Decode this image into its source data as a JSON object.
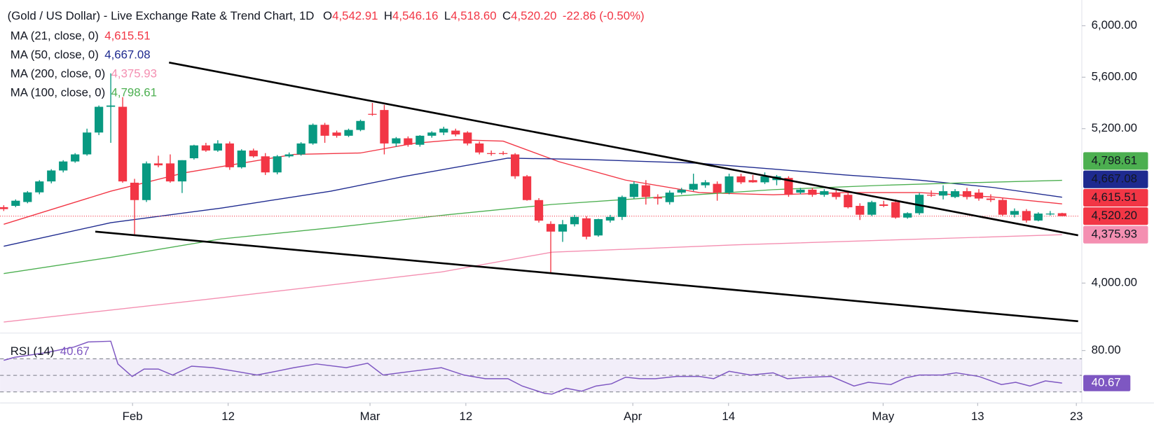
{
  "chart_data": {
    "type": "candlestick",
    "header": {
      "title": "(Gold / US Dollar) - Live Exchange Rate & Trend Chart, 1D",
      "fields": [
        {
          "key": "O",
          "value": "4,542.91"
        },
        {
          "key": "H",
          "value": "4,546.16"
        },
        {
          "key": "L",
          "value": "4,518.60"
        },
        {
          "key": "C",
          "value": "4,520.20"
        }
      ],
      "change": "-22.86 (-0.50%)"
    },
    "up_color": "#089981",
    "down_color": "#f23645",
    "xlim": [
      -0.3094,
      90.35
    ],
    "xticks": [
      {
        "value": 10.83,
        "label": "Feb"
      },
      {
        "value": 18.87,
        "label": "12"
      },
      {
        "value": 30.8,
        "label": "Mar"
      },
      {
        "value": 38.86,
        "label": "12"
      },
      {
        "value": 52.9,
        "label": "Apr"
      },
      {
        "value": 60.95,
        "label": "14"
      },
      {
        "value": 73.95,
        "label": "May"
      },
      {
        "value": 81.9,
        "label": "13"
      },
      {
        "value": 90.2,
        "label": "23"
      }
    ],
    "ylim": [
      3611,
      6200
    ],
    "yticks": [
      {
        "value": 6000,
        "label": "6,000.00"
      },
      {
        "value": 5600,
        "label": "5,600.00"
      },
      {
        "value": 5200,
        "label": "5,200.00"
      },
      {
        "value": 4000,
        "label": "4,000.00"
      }
    ],
    "ohlc": [
      [
        4590,
        4605,
        4560,
        4575
      ],
      [
        4600,
        4650,
        4590,
        4640
      ],
      [
        4630,
        4715,
        4620,
        4705
      ],
      [
        4705,
        4800,
        4690,
        4790
      ],
      [
        4790,
        4885,
        4775,
        4875
      ],
      [
        4875,
        4955,
        4860,
        4945
      ],
      [
        4945,
        5010,
        4935,
        5000
      ],
      [
        5000,
        5200,
        4990,
        5170
      ],
      [
        5170,
        5380,
        5150,
        5370
      ],
      [
        5370,
        5630,
        5090,
        5380
      ],
      [
        5370,
        5445,
        4780,
        4790
      ],
      [
        4780,
        4810,
        4380,
        4645
      ],
      [
        4645,
        4945,
        4630,
        4930
      ],
      [
        4930,
        4990,
        4900,
        4915
      ],
      [
        4930,
        5000,
        4780,
        4790
      ],
      [
        4790,
        4955,
        4700,
        4955
      ],
      [
        4970,
        5075,
        4960,
        5070
      ],
      [
        5070,
        5090,
        5020,
        5030
      ],
      [
        5030,
        5110,
        5020,
        5085
      ],
      [
        5085,
        5100,
        4880,
        4900
      ],
      [
        4900,
        5040,
        4890,
        5030
      ],
      [
        5030,
        5045,
        4975,
        4985
      ],
      [
        4985,
        5010,
        4840,
        4860
      ],
      [
        4860,
        4995,
        4845,
        4985
      ],
      [
        4985,
        5015,
        4975,
        5000
      ],
      [
        5000,
        5095,
        4990,
        5085
      ],
      [
        5085,
        5240,
        5075,
        5230
      ],
      [
        5230,
        5245,
        5090,
        5145
      ],
      [
        5170,
        5185,
        5130,
        5145
      ],
      [
        5145,
        5200,
        5135,
        5190
      ],
      [
        5190,
        5270,
        5180,
        5260
      ],
      [
        5315,
        5400,
        5300,
        5310
      ],
      [
        5345,
        5385,
        5000,
        5085
      ],
      [
        5085,
        5135,
        5060,
        5125
      ],
      [
        5125,
        5140,
        5060,
        5075
      ],
      [
        5075,
        5150,
        5060,
        5145
      ],
      [
        5145,
        5180,
        5130,
        5170
      ],
      [
        5170,
        5215,
        5150,
        5200
      ],
      [
        5185,
        5200,
        5140,
        5155
      ],
      [
        5170,
        5180,
        5070,
        5085
      ],
      [
        5085,
        5100,
        5000,
        5015
      ],
      [
        5010,
        5030,
        4990,
        5005
      ],
      [
        5010,
        5025,
        4995,
        5005
      ],
      [
        5000,
        5010,
        4810,
        4830
      ],
      [
        4830,
        4840,
        4640,
        4645
      ],
      [
        4645,
        4660,
        4470,
        4485
      ],
      [
        4460,
        4480,
        4080,
        4400
      ],
      [
        4400,
        4490,
        4320,
        4457
      ],
      [
        4457,
        4530,
        4440,
        4514
      ],
      [
        4503,
        4520,
        4340,
        4360
      ],
      [
        4370,
        4500,
        4360,
        4497
      ],
      [
        4486,
        4530,
        4470,
        4514
      ],
      [
        4514,
        4680,
        4490,
        4669
      ],
      [
        4669,
        4790,
        4655,
        4771
      ],
      [
        4760,
        4800,
        4610,
        4669
      ],
      [
        4669,
        4690,
        4610,
        4657
      ],
      [
        4629,
        4720,
        4610,
        4703
      ],
      [
        4703,
        4740,
        4690,
        4726
      ],
      [
        4726,
        4850,
        4715,
        4771
      ],
      [
        4760,
        4800,
        4740,
        4783
      ],
      [
        4771,
        4790,
        4640,
        4703
      ],
      [
        4703,
        4850,
        4690,
        4829
      ],
      [
        4829,
        4850,
        4770,
        4783
      ],
      [
        4800,
        4840,
        4780,
        4783
      ],
      [
        4783,
        4860,
        4770,
        4829
      ],
      [
        4800,
        4840,
        4760,
        4829
      ],
      [
        4817,
        4830,
        4670,
        4686
      ],
      [
        4703,
        4740,
        4690,
        4726
      ],
      [
        4726,
        4740,
        4670,
        4686
      ],
      [
        4686,
        4730,
        4670,
        4714
      ],
      [
        4703,
        4720,
        4650,
        4669
      ],
      [
        4686,
        4700,
        4580,
        4589
      ],
      [
        4600,
        4620,
        4490,
        4531
      ],
      [
        4531,
        4640,
        4520,
        4629
      ],
      [
        4611,
        4640,
        4590,
        4600
      ],
      [
        4629,
        4650,
        4500,
        4509
      ],
      [
        4509,
        4550,
        4500,
        4543
      ],
      [
        4543,
        4700,
        4530,
        4686
      ],
      [
        4686,
        4720,
        4670,
        4680
      ],
      [
        4680,
        4760,
        4650,
        4714
      ],
      [
        4669,
        4730,
        4660,
        4714
      ],
      [
        4714,
        4740,
        4650,
        4669
      ],
      [
        4703,
        4730,
        4640,
        4657
      ],
      [
        4657,
        4690,
        4630,
        4646
      ],
      [
        4646,
        4660,
        4520,
        4531
      ],
      [
        4531,
        4580,
        4510,
        4560
      ],
      [
        4560,
        4575,
        4470,
        4486
      ],
      [
        4486,
        4550,
        4480,
        4540
      ],
      [
        4540,
        4560,
        4525,
        4540
      ],
      [
        4542.91,
        4546.16,
        4518.6,
        4520.2
      ]
    ],
    "last_price": {
      "value": 4520.2,
      "label": "4,520.20",
      "color": "#f23645"
    },
    "moving_averages": [
      {
        "name": "MA (21, close, 0)",
        "color": "#f23645",
        "last": {
          "value": 4615.51,
          "label": "4,615.51"
        },
        "x": [
          0,
          9,
          15.2,
          24.4,
          30,
          34.5,
          38,
          42,
          46.7,
          52.3,
          58.5,
          64.7,
          70.8,
          77,
          83.2,
          89
        ],
        "values": [
          4457,
          4714,
          4857,
          5000,
          5011,
          5086,
          5114,
          5103,
          4943,
          4800,
          4703,
          4686,
          4703,
          4703,
          4669,
          4615.51
        ]
      },
      {
        "name": "MA (50, close, 0)",
        "color": "#1e2a8f",
        "last": {
          "value": 4667.08,
          "label": "4,667.08"
        },
        "x": [
          0,
          9,
          18.3,
          27.5,
          33.7,
          42.4,
          49.2,
          58.5,
          64.7,
          70.8,
          77,
          83.2,
          89
        ],
        "values": [
          4286,
          4469,
          4583,
          4714,
          4829,
          4971,
          4960,
          4931,
          4886,
          4840,
          4800,
          4743,
          4667.08
        ]
      },
      {
        "name": "MA (200, close, 0)",
        "color": "#f48fb1",
        "last": {
          "value": 4375.93,
          "label": "4,375.93"
        },
        "x": [
          0,
          18.3,
          36.8,
          46.1,
          61.6,
          89
        ],
        "values": [
          3697,
          3886,
          4086,
          4240,
          4297,
          4375.93
        ]
      },
      {
        "name": "MA (100, close, 0)",
        "color": "#4caf50",
        "last": {
          "value": 4798.61,
          "label": "4,798.61"
        },
        "x": [
          0,
          9,
          18.3,
          27.5,
          36.8,
          46.1,
          55.4,
          64.7,
          73.9,
          80.1,
          89
        ],
        "values": [
          4074,
          4200,
          4343,
          4429,
          4526,
          4611,
          4669,
          4726,
          4760,
          4777,
          4798.61
        ]
      }
    ],
    "trendlines": [
      {
        "color": "#000000",
        "x": [
          13.9,
          90.35
        ],
        "values": [
          5714,
          4371
        ]
      },
      {
        "color": "#000000",
        "x": [
          7.7,
          90.35
        ],
        "values": [
          4400,
          3703
        ]
      }
    ],
    "rsi": {
      "name": "RSI (14)",
      "color": "#7e57c2",
      "last": {
        "value": 40.67,
        "label": "40.67"
      },
      "ylim": [
        19.3,
        99.3
      ],
      "yticks": [
        {
          "value": 80,
          "label": "80.00"
        }
      ],
      "levels": [
        70,
        50,
        30
      ],
      "x": [
        0,
        0.9,
        3.4,
        5.9,
        7.1,
        9,
        9.6,
        10.8,
        11.8,
        13,
        14.2,
        15.8,
        17.6,
        19.5,
        21.3,
        22.9,
        24.4,
        26.3,
        28.8,
        30.6,
        31.9,
        34.3,
        36.8,
        38.7,
        40.5,
        42.4,
        43.6,
        45.5,
        46.1,
        47.3,
        48.6,
        49.8,
        51.1,
        52.3,
        53.5,
        54.8,
        56.6,
        58.5,
        59.7,
        61,
        62.8,
        64.7,
        65.9,
        67.8,
        69.6,
        71.5,
        72.7,
        74.6,
        75.8,
        77,
        78.9,
        80.1,
        82,
        83.9,
        85.1,
        86.3,
        87.6,
        89
      ],
      "values": [
        68.2,
        71.8,
        77.1,
        84.2,
        90.4,
        91.3,
        63.8,
        48.7,
        57.6,
        57.6,
        50.4,
        61.1,
        59.3,
        54.9,
        50.4,
        54.9,
        59.3,
        63.8,
        59.3,
        64.7,
        50.4,
        54.9,
        59.3,
        50.4,
        46,
        46,
        37.1,
        28.2,
        27.3,
        34.4,
        30.9,
        37.1,
        39.8,
        47.8,
        46,
        46,
        48.7,
        48.7,
        46,
        54.9,
        50.4,
        53.1,
        46,
        47.8,
        48.7,
        37.1,
        41.6,
        38.9,
        46.9,
        50.4,
        50.4,
        53.1,
        48.7,
        38.9,
        41.6,
        37.1,
        43.3,
        40.67
      ]
    }
  }
}
